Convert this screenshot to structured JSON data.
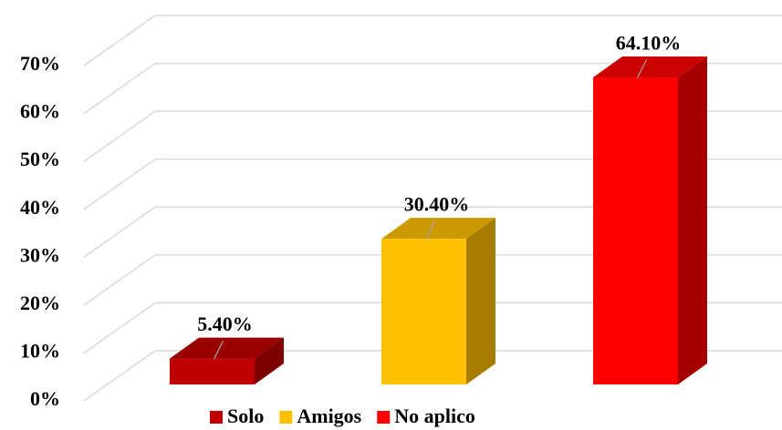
{
  "chart_data": {
    "type": "bar3d",
    "series": [
      {
        "name": "Solo",
        "color": "#c00000",
        "values": [
          5.4
        ],
        "value_labels": [
          "5.40%"
        ]
      },
      {
        "name": "Amigos",
        "color": "#ffc000",
        "values": [
          30.4
        ],
        "value_labels": [
          "30.40%"
        ]
      },
      {
        "name": "No aplico",
        "color": "#ff0000",
        "values": [
          64.1
        ],
        "value_labels": [
          "64.10%"
        ]
      }
    ],
    "ylim": [
      0,
      70
    ],
    "yticks": [
      {
        "value": 0,
        "label": "0%"
      },
      {
        "value": 10,
        "label": "10%"
      },
      {
        "value": 20,
        "label": "20%"
      },
      {
        "value": 30,
        "label": "30%"
      },
      {
        "value": 40,
        "label": "40%"
      },
      {
        "value": 50,
        "label": "50%"
      },
      {
        "value": 60,
        "label": "60%"
      },
      {
        "value": 70,
        "label": "70%"
      }
    ],
    "grid": true,
    "legend": "bottom"
  }
}
